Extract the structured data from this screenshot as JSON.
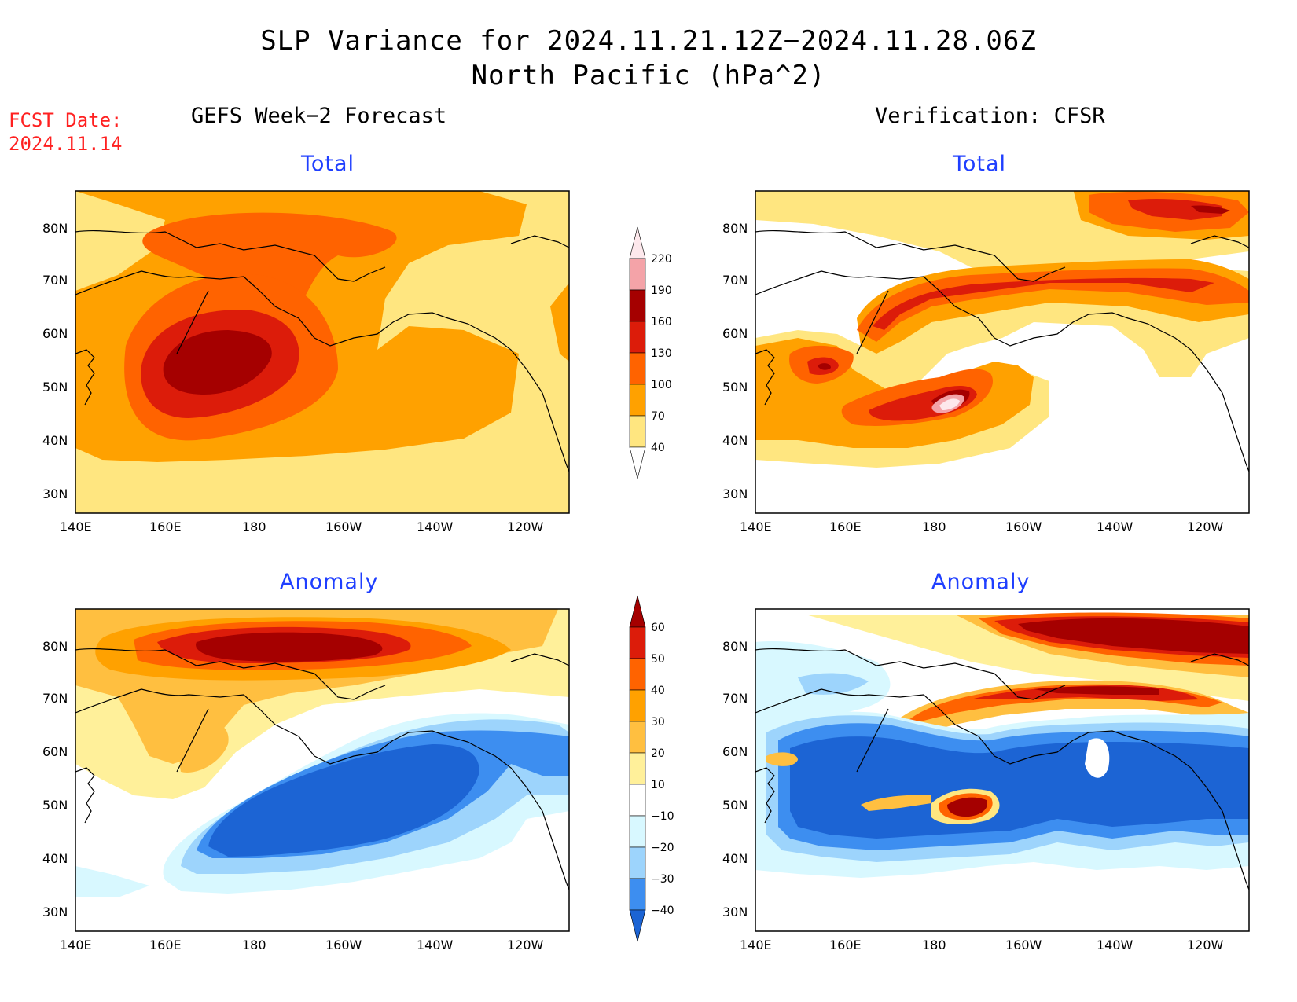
{
  "title_line1": "SLP Variance for 2024.11.21.12Z−2024.11.28.06Z",
  "title_line2": "North Pacific (hPa^2)",
  "fcst_label": "FCST Date:",
  "fcst_date": "2024.11.14",
  "left_header": "GEFS Week−2 Forecast",
  "right_header": "Verification: CFSR",
  "panels": [
    {
      "subtitle": "Total"
    },
    {
      "subtitle": "Total"
    },
    {
      "subtitle": "Anomaly"
    },
    {
      "subtitle": "Anomaly"
    }
  ],
  "axis": {
    "lon_labels": [
      "140E",
      "160E",
      "180",
      "160W",
      "140W",
      "120W"
    ],
    "lat_labels": [
      "80N",
      "70N",
      "60N",
      "50N",
      "40N",
      "30N"
    ]
  },
  "colorbar_total": {
    "labels": [
      "220",
      "190",
      "160",
      "130",
      "100",
      "70",
      "40"
    ],
    "colors": [
      "#fde8ec",
      "#f4a3a8",
      "#a50000",
      "#dc1c0a",
      "#ff6300",
      "#ffa100",
      "#ffe680",
      "#ffffff"
    ]
  },
  "colorbar_anom": {
    "labels": [
      "60",
      "50",
      "40",
      "30",
      "20",
      "10",
      "−10",
      "−20",
      "−30",
      "−40"
    ],
    "colors": [
      "#a50000",
      "#dc1c0a",
      "#ff6300",
      "#ffa100",
      "#ffbf40",
      "#fff09a",
      "#ffffff",
      "#d8f8ff",
      "#9dd4fc",
      "#3d8ef0",
      "#1c64d4"
    ]
  }
}
